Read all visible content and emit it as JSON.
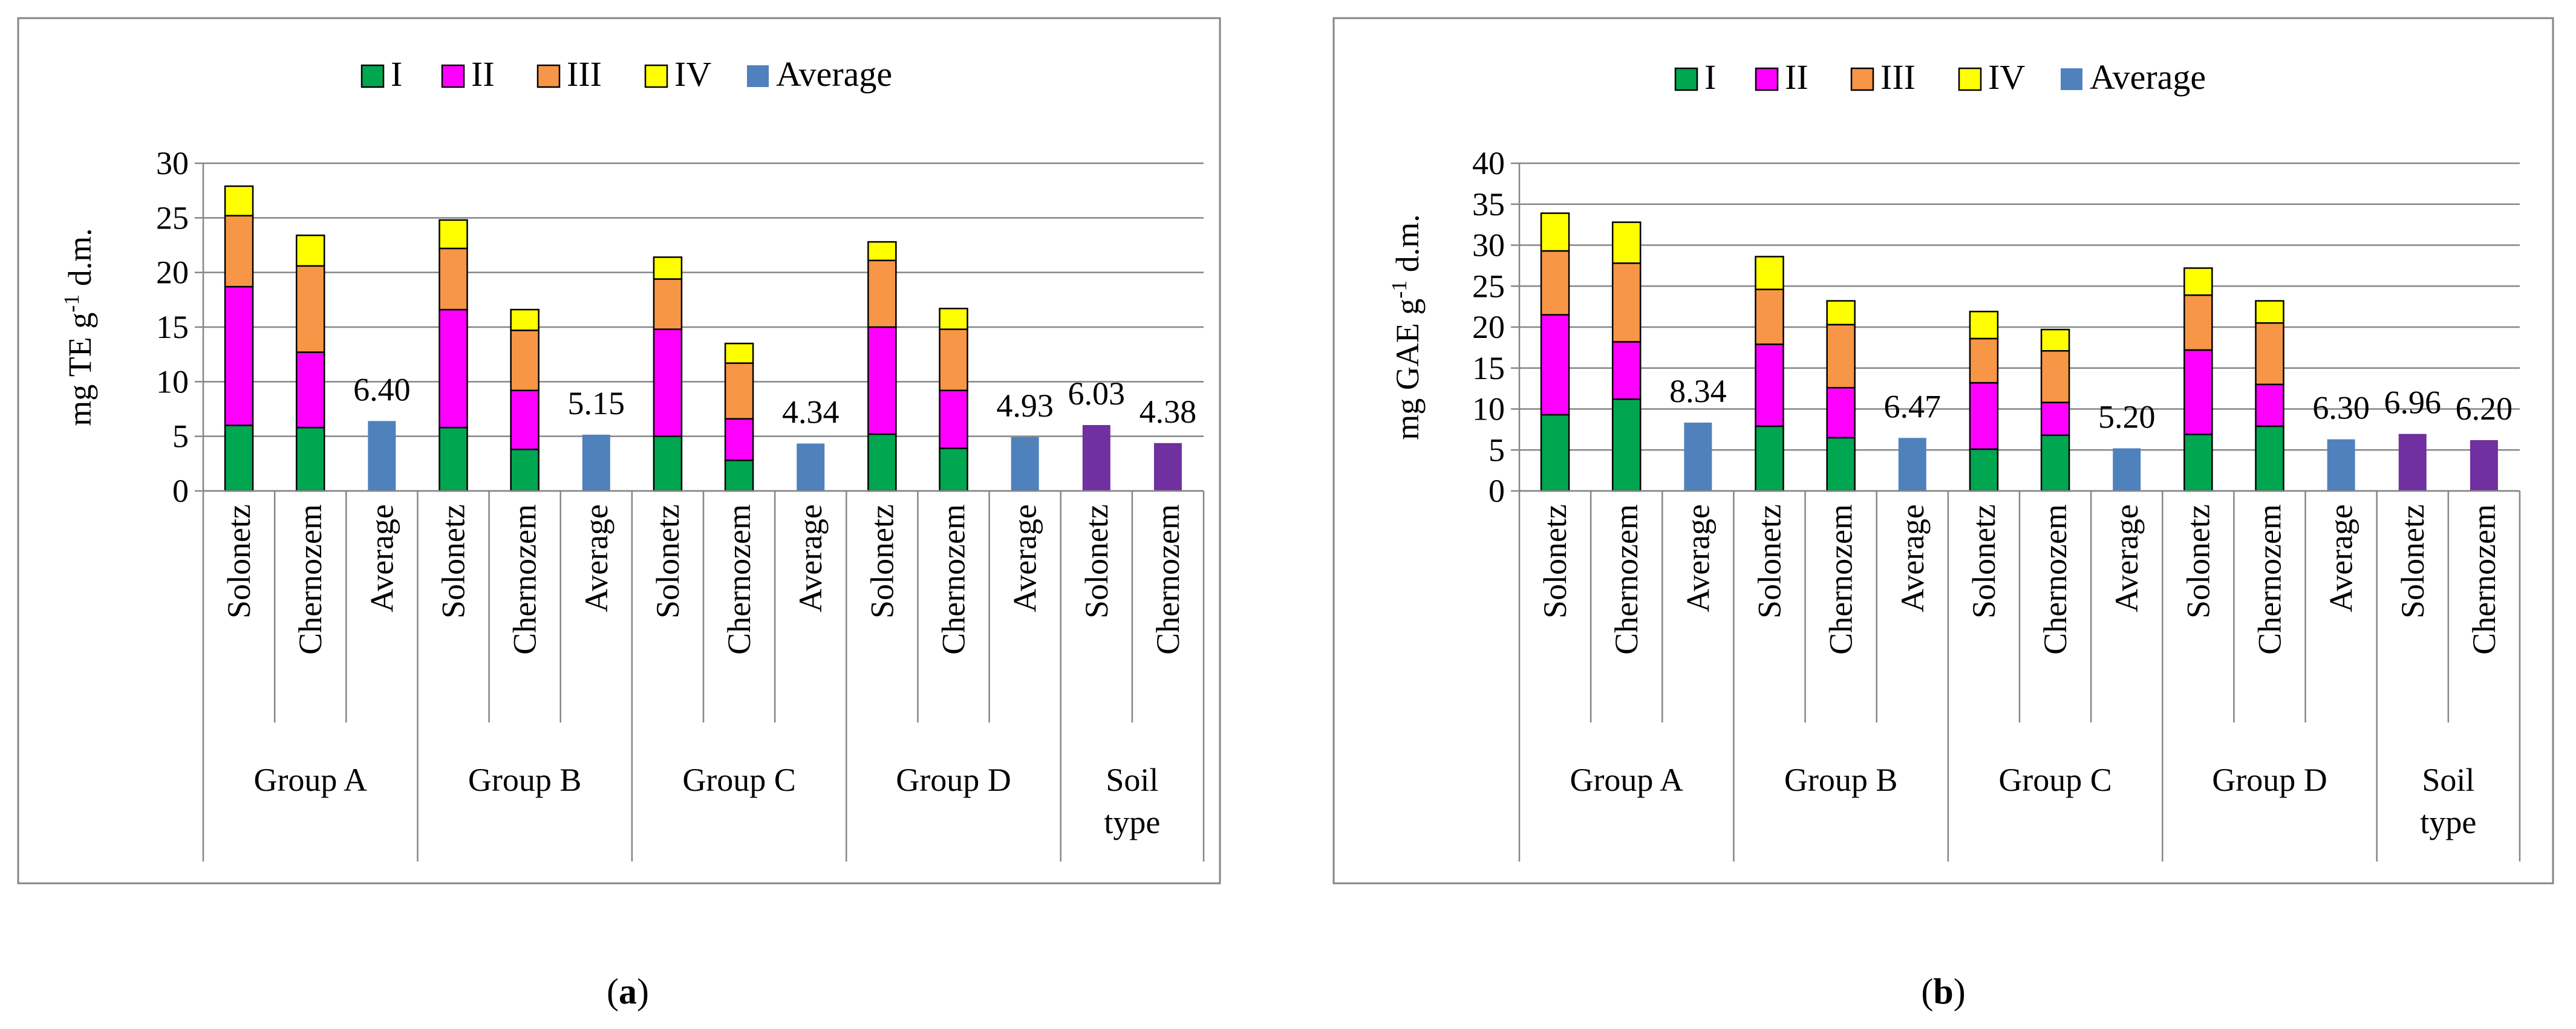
{
  "legend": {
    "I": "I",
    "II": "II",
    "III": "III",
    "IV": "IV",
    "average": "Average"
  },
  "colors": {
    "I": "#00a650",
    "II": "#ff00ff",
    "III": "#f79646",
    "IV": "#ffff00",
    "average": "#4f81bd",
    "soil": "#7030a0"
  },
  "chart_data": [
    {
      "type": "bar",
      "stacked": true,
      "panel_label": [
        "(",
        "a",
        ")"
      ],
      "ylabel": [
        "mg TE g",
        "-1",
        " d.m."
      ],
      "ylim": [
        0,
        30
      ],
      "yticks": [
        0,
        5,
        10,
        15,
        20,
        25,
        30
      ],
      "categories": [
        "Solonetz",
        "Chernozem",
        "Average",
        "Solonetz",
        "Chernozem",
        "Average",
        "Solonetz",
        "Chernozem",
        "Average",
        "Solonetz",
        "Chernozem",
        "Average",
        "Solonetz",
        "Chernozem"
      ],
      "groups": [
        {
          "label": [
            "Group A"
          ],
          "span": 3
        },
        {
          "label": [
            "Group B"
          ],
          "span": 3
        },
        {
          "label": [
            "Group C"
          ],
          "span": 3
        },
        {
          "label": [
            "Group D"
          ],
          "span": 3
        },
        {
          "label": [
            "Soil",
            "type"
          ],
          "span": 2
        }
      ],
      "series": [
        {
          "name": "I",
          "values": [
            6.0,
            5.8,
            null,
            5.8,
            3.8,
            null,
            5.0,
            2.8,
            null,
            5.2,
            3.9,
            null,
            null,
            null
          ]
        },
        {
          "name": "II",
          "values": [
            12.7,
            6.9,
            null,
            10.8,
            5.4,
            null,
            9.8,
            3.8,
            null,
            9.8,
            5.3,
            null,
            null,
            null
          ]
        },
        {
          "name": "III",
          "values": [
            6.5,
            7.9,
            null,
            5.6,
            5.5,
            null,
            4.6,
            5.1,
            null,
            6.1,
            5.6,
            null,
            null,
            null
          ]
        },
        {
          "name": "IV",
          "values": [
            2.7,
            2.8,
            null,
            2.6,
            1.9,
            null,
            2.0,
            1.8,
            null,
            1.7,
            1.9,
            null,
            null,
            null
          ]
        },
        {
          "name": "Average",
          "values": [
            null,
            null,
            6.4,
            null,
            null,
            5.15,
            null,
            null,
            4.34,
            null,
            null,
            4.93,
            6.03,
            4.38
          ]
        }
      ],
      "data_labels": [
        "6.40",
        "5.15",
        "4.34",
        "4.93",
        "6.03",
        "4.38"
      ],
      "legend_position": "top"
    },
    {
      "type": "bar",
      "stacked": true,
      "panel_label": [
        "(",
        "b",
        ")"
      ],
      "ylabel": [
        "mg GAE g",
        "-1",
        " d.m."
      ],
      "ylim": [
        0,
        40
      ],
      "yticks": [
        0,
        5,
        10,
        15,
        20,
        25,
        30,
        35,
        40
      ],
      "categories": [
        "Solonetz",
        "Chernozem",
        "Average",
        "Solonetz",
        "Chernozem",
        "Average",
        "Solonetz",
        "Chernozem",
        "Average",
        "Solonetz",
        "Chernozem",
        "Average",
        "Solonetz",
        "Chernozem"
      ],
      "groups": [
        {
          "label": [
            "Group A"
          ],
          "span": 3
        },
        {
          "label": [
            "Group B"
          ],
          "span": 3
        },
        {
          "label": [
            "Group C"
          ],
          "span": 3
        },
        {
          "label": [
            "Group D"
          ],
          "span": 3
        },
        {
          "label": [
            "Soil",
            "type"
          ],
          "span": 2
        }
      ],
      "series": [
        {
          "name": "I",
          "values": [
            9.3,
            11.2,
            null,
            7.9,
            6.5,
            null,
            5.1,
            6.8,
            null,
            6.9,
            7.9,
            null,
            null,
            null
          ]
        },
        {
          "name": "II",
          "values": [
            12.2,
            7.0,
            null,
            10.0,
            6.1,
            null,
            8.1,
            4.0,
            null,
            10.3,
            5.1,
            null,
            null,
            null
          ]
        },
        {
          "name": "III",
          "values": [
            7.8,
            9.6,
            null,
            6.7,
            7.7,
            null,
            5.4,
            6.3,
            null,
            6.7,
            7.5,
            null,
            null,
            null
          ]
        },
        {
          "name": "IV",
          "values": [
            4.6,
            5.0,
            null,
            4.0,
            2.9,
            null,
            3.3,
            2.6,
            null,
            3.3,
            2.7,
            null,
            null,
            null
          ]
        },
        {
          "name": "Average",
          "values": [
            null,
            null,
            8.34,
            null,
            null,
            6.47,
            null,
            null,
            5.2,
            null,
            null,
            6.3,
            6.96,
            6.2
          ]
        }
      ],
      "data_labels": [
        "8.34",
        "6.47",
        "5.20",
        "6.30",
        "6.96",
        "6.20"
      ],
      "legend_position": "top"
    }
  ]
}
